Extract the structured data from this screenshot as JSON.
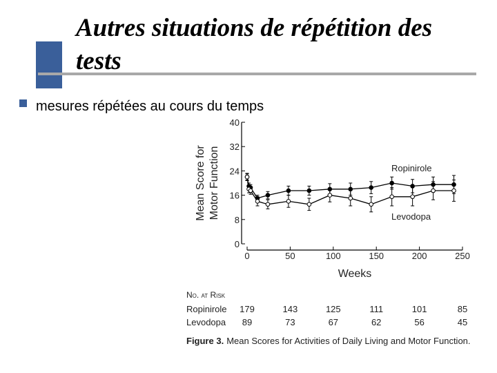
{
  "slide_title": [
    "Autres situations de répétition des",
    "tests"
  ],
  "bullet": "mesures répétées au cours du temps",
  "chart_data": {
    "type": "line",
    "ylabel": [
      "Mean Score for",
      "Motor Function"
    ],
    "xlabel": "Weeks",
    "xlim": [
      0,
      250
    ],
    "xticks": [
      0,
      50,
      100,
      150,
      200,
      250
    ],
    "ylim": [
      0,
      40
    ],
    "yticks": [
      0,
      8,
      16,
      24,
      32,
      40
    ],
    "x": [
      0,
      2,
      4,
      12,
      24,
      48,
      72,
      96,
      120,
      144,
      168,
      192,
      216,
      240
    ],
    "series": [
      {
        "name": "Ropinirole",
        "color": "#000000",
        "marker_fill": "#000000",
        "values": [
          22,
          19,
          18.5,
          15,
          16,
          17.5,
          17.5,
          18,
          18,
          18.5,
          20,
          19,
          19.5,
          19.5
        ],
        "errors": [
          1,
          1,
          1,
          1,
          1.2,
          1.5,
          1.5,
          1.8,
          2,
          2,
          2,
          2.2,
          2.5,
          3
        ]
      },
      {
        "name": "Levodopa",
        "color": "#000000",
        "marker_fill": "#ffffff",
        "values": [
          22,
          18,
          17.5,
          14,
          13,
          14,
          13,
          16,
          15,
          13,
          15.5,
          15.5,
          17.5,
          17.5
        ],
        "errors": [
          1.2,
          1.2,
          1.2,
          1.5,
          1.5,
          2,
          2,
          2.2,
          2.5,
          2.5,
          3,
          3,
          3,
          3.5
        ]
      }
    ],
    "risk_table": {
      "title": "No. at Risk",
      "rows": [
        {
          "name": "Ropinirole",
          "values": [
            179,
            143,
            125,
            111,
            101,
            85
          ]
        },
        {
          "name": "Levodopa",
          "values": [
            89,
            73,
            67,
            62,
            56,
            45
          ]
        }
      ]
    },
    "caption_label": "Figure 3.",
    "caption_text": "Mean Scores for Activities of Daily Living and Motor Function."
  }
}
